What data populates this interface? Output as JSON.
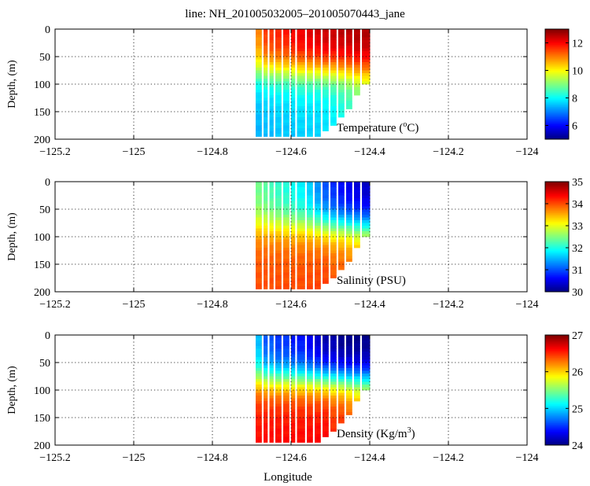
{
  "figure_title": "line: NH_201005032005–201005070443_jane",
  "xlabel": "Longitude",
  "ylabel": "Depth, (m)",
  "chart_data": [
    {
      "type": "heatmap",
      "label": "Temperature",
      "label_sup": "o",
      "label_pre": "Temperature (",
      "label_post": "C)",
      "xlim": [
        -125.2,
        -124
      ],
      "ylim": [
        200,
        0
      ],
      "xticks": [
        "−125.2",
        "−125",
        "−124.8",
        "−124.6",
        "−124.4",
        "−124.2",
        "−124"
      ],
      "yticks": [
        "0",
        "50",
        "100",
        "150",
        "200"
      ],
      "colorbar": {
        "min": 5,
        "max": 13,
        "ticks": [
          "6",
          "8",
          "10",
          "12"
        ],
        "tick_values": [
          6,
          8,
          10,
          12
        ]
      },
      "profiles": [
        {
          "lon": -124.69,
          "max_depth": 195,
          "surface": 11.0,
          "bottom": 7.6
        },
        {
          "lon": -124.67,
          "max_depth": 195,
          "surface": 11.6,
          "bottom": 7.7
        },
        {
          "lon": -124.655,
          "max_depth": 195,
          "surface": 11.7,
          "bottom": 7.7
        },
        {
          "lon": -124.64,
          "max_depth": 195,
          "surface": 11.8,
          "bottom": 7.8
        },
        {
          "lon": -124.62,
          "max_depth": 195,
          "surface": 11.9,
          "bottom": 7.8
        },
        {
          "lon": -124.6,
          "max_depth": 195,
          "surface": 12.1,
          "bottom": 7.8
        },
        {
          "lon": -124.585,
          "max_depth": 195,
          "surface": 12.2,
          "bottom": 7.9
        },
        {
          "lon": -124.56,
          "max_depth": 194,
          "surface": 12.3,
          "bottom": 7.9
        },
        {
          "lon": -124.54,
          "max_depth": 194,
          "surface": 12.4,
          "bottom": 7.9
        },
        {
          "lon": -124.52,
          "max_depth": 185,
          "surface": 12.5,
          "bottom": 8.0
        },
        {
          "lon": -124.5,
          "max_depth": 175,
          "surface": 12.5,
          "bottom": 8.1
        },
        {
          "lon": -124.48,
          "max_depth": 160,
          "surface": 12.6,
          "bottom": 8.3
        },
        {
          "lon": -124.46,
          "max_depth": 145,
          "surface": 12.6,
          "bottom": 8.5
        },
        {
          "lon": -124.44,
          "max_depth": 120,
          "surface": 12.7,
          "bottom": 8.8
        },
        {
          "lon": -124.42,
          "max_depth": 100,
          "surface": 12.7,
          "bottom": 9.0
        },
        {
          "lon": -124.4,
          "max_depth": 100,
          "surface": 12.7,
          "bottom": 9.0
        }
      ],
      "thermocline_depth": 75
    },
    {
      "type": "heatmap",
      "label": "Salinity (PSU)",
      "xlim": [
        -125.2,
        -124
      ],
      "ylim": [
        200,
        0
      ],
      "xticks": [
        "−125.2",
        "−125",
        "−124.8",
        "−124.6",
        "−124.4",
        "−124.2",
        "−124"
      ],
      "yticks": [
        "0",
        "50",
        "100",
        "150",
        "200"
      ],
      "colorbar": {
        "min": 30,
        "max": 35,
        "ticks": [
          "30",
          "31",
          "32",
          "33",
          "34",
          "35"
        ],
        "tick_values": [
          30,
          31,
          32,
          33,
          34,
          35
        ]
      },
      "profiles": [
        {
          "lon": -124.69,
          "max_depth": 195,
          "surface": 32.4,
          "bottom": 33.9
        },
        {
          "lon": -124.67,
          "max_depth": 195,
          "surface": 32.3,
          "bottom": 33.9
        },
        {
          "lon": -124.655,
          "max_depth": 195,
          "surface": 32.2,
          "bottom": 33.9
        },
        {
          "lon": -124.64,
          "max_depth": 195,
          "surface": 32.1,
          "bottom": 33.9
        },
        {
          "lon": -124.62,
          "max_depth": 195,
          "surface": 32.0,
          "bottom": 33.9
        },
        {
          "lon": -124.6,
          "max_depth": 195,
          "surface": 31.9,
          "bottom": 33.9
        },
        {
          "lon": -124.585,
          "max_depth": 195,
          "surface": 31.8,
          "bottom": 33.9
        },
        {
          "lon": -124.56,
          "max_depth": 194,
          "surface": 31.6,
          "bottom": 33.9
        },
        {
          "lon": -124.54,
          "max_depth": 194,
          "surface": 31.3,
          "bottom": 33.9
        },
        {
          "lon": -124.52,
          "max_depth": 185,
          "surface": 31.0,
          "bottom": 33.9
        },
        {
          "lon": -124.5,
          "max_depth": 175,
          "surface": 30.8,
          "bottom": 33.8
        },
        {
          "lon": -124.48,
          "max_depth": 160,
          "surface": 30.6,
          "bottom": 33.8
        },
        {
          "lon": -124.46,
          "max_depth": 145,
          "surface": 30.5,
          "bottom": 33.7
        },
        {
          "lon": -124.44,
          "max_depth": 120,
          "surface": 30.4,
          "bottom": 33.6
        },
        {
          "lon": -124.42,
          "max_depth": 100,
          "surface": 30.3,
          "bottom": 33.5
        },
        {
          "lon": -124.4,
          "max_depth": 100,
          "surface": 30.3,
          "bottom": 33.5
        }
      ],
      "thermocline_depth": 80
    },
    {
      "type": "heatmap",
      "label_pre": "Density (Kg/m",
      "label_sup": "3",
      "label_post": ")",
      "xlim": [
        -125.2,
        -124
      ],
      "ylim": [
        200,
        0
      ],
      "xticks": [
        "−125.2",
        "−125",
        "−124.8",
        "−124.6",
        "−124.4",
        "−124.2",
        "−124"
      ],
      "yticks": [
        "0",
        "50",
        "100",
        "150",
        "200"
      ],
      "colorbar": {
        "min": 24,
        "max": 27,
        "ticks": [
          "24",
          "25",
          "26",
          "27"
        ],
        "tick_values": [
          24,
          25,
          26,
          27
        ]
      },
      "profiles": [
        {
          "lon": -124.69,
          "max_depth": 195,
          "surface": 24.9,
          "bottom": 26.5
        },
        {
          "lon": -124.67,
          "max_depth": 195,
          "surface": 24.6,
          "bottom": 26.5
        },
        {
          "lon": -124.655,
          "max_depth": 195,
          "surface": 24.6,
          "bottom": 26.5
        },
        {
          "lon": -124.64,
          "max_depth": 195,
          "surface": 24.5,
          "bottom": 26.5
        },
        {
          "lon": -124.62,
          "max_depth": 195,
          "surface": 24.5,
          "bottom": 26.5
        },
        {
          "lon": -124.6,
          "max_depth": 195,
          "surface": 24.4,
          "bottom": 26.5
        },
        {
          "lon": -124.585,
          "max_depth": 195,
          "surface": 24.4,
          "bottom": 26.5
        },
        {
          "lon": -124.56,
          "max_depth": 194,
          "surface": 24.3,
          "bottom": 26.5
        },
        {
          "lon": -124.54,
          "max_depth": 194,
          "surface": 24.2,
          "bottom": 26.5
        },
        {
          "lon": -124.52,
          "max_depth": 185,
          "surface": 24.1,
          "bottom": 26.5
        },
        {
          "lon": -124.5,
          "max_depth": 175,
          "surface": 24.1,
          "bottom": 26.4
        },
        {
          "lon": -124.48,
          "max_depth": 160,
          "surface": 24.0,
          "bottom": 26.4
        },
        {
          "lon": -124.46,
          "max_depth": 145,
          "surface": 24.0,
          "bottom": 26.3
        },
        {
          "lon": -124.44,
          "max_depth": 120,
          "surface": 24.0,
          "bottom": 26.2
        },
        {
          "lon": -124.42,
          "max_depth": 100,
          "surface": 24.0,
          "bottom": 26.1
        },
        {
          "lon": -124.4,
          "max_depth": 100,
          "surface": 24.0,
          "bottom": 26.1
        }
      ],
      "thermocline_depth": 80
    }
  ]
}
